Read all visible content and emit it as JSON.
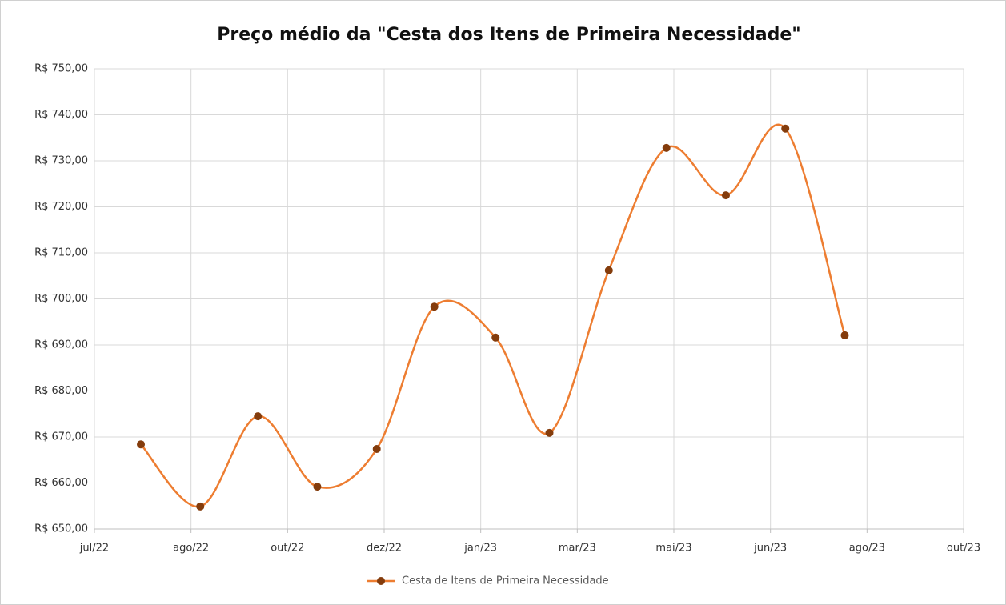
{
  "chart_data": {
    "type": "line",
    "title": "Preço médio da \"Cesta dos Itens de Primeira Necessidade\"",
    "x": [
      44768,
      44800,
      44831,
      44863,
      44895,
      44926,
      44959,
      44988,
      45020,
      45051,
      45083,
      45115,
      45147
    ],
    "series": [
      {
        "name": "Cesta de Itens de Primeira Necessidade",
        "color": "#ed7d31",
        "marker_color": "#843c0c",
        "values": [
          668.4,
          654.9,
          674.5,
          659.2,
          667.4,
          698.3,
          691.6,
          670.9,
          706.2,
          732.8,
          722.5,
          737.0,
          692.1
        ]
      }
    ],
    "xlim": [
      44743,
      45211
    ],
    "xticks": [
      {
        "value": 44743,
        "label": "jul/22"
      },
      {
        "value": 44795,
        "label": "ago/22"
      },
      {
        "value": 44847,
        "label": "out/22"
      },
      {
        "value": 44899,
        "label": "dez/22"
      },
      {
        "value": 44951,
        "label": "jan/23"
      },
      {
        "value": 45003,
        "label": "mar/23"
      },
      {
        "value": 45055,
        "label": "mai/23"
      },
      {
        "value": 45107,
        "label": "jun/23"
      },
      {
        "value": 45159,
        "label": "ago/23"
      },
      {
        "value": 45211,
        "label": "out/23"
      }
    ],
    "ylim": [
      650,
      750
    ],
    "yticks": [
      {
        "value": 650,
        "label": "R$ 650,00"
      },
      {
        "value": 660,
        "label": "R$ 660,00"
      },
      {
        "value": 670,
        "label": "R$ 670,00"
      },
      {
        "value": 680,
        "label": "R$ 680,00"
      },
      {
        "value": 690,
        "label": "R$ 690,00"
      },
      {
        "value": 700,
        "label": "R$ 700,00"
      },
      {
        "value": 710,
        "label": "R$ 710,00"
      },
      {
        "value": 720,
        "label": "R$ 720,00"
      },
      {
        "value": 730,
        "label": "R$ 730,00"
      },
      {
        "value": 740,
        "label": "R$ 740,00"
      },
      {
        "value": 750,
        "label": "R$ 750,00"
      }
    ],
    "grid": true,
    "smooth": true,
    "legend": "bottom"
  }
}
